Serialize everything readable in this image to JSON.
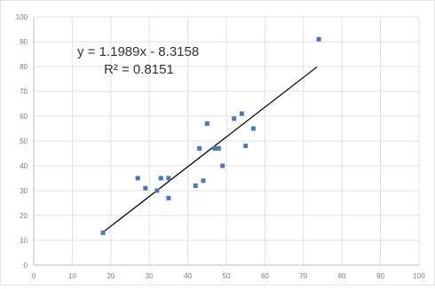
{
  "chart_data": {
    "type": "scatter",
    "title": "",
    "xlabel": "",
    "ylabel": "",
    "xlim": [
      0,
      100
    ],
    "ylim": [
      0,
      100
    ],
    "x_ticks": [
      "0",
      "10",
      "20",
      "30",
      "40",
      "50",
      "60",
      "70",
      "80",
      "90",
      "100"
    ],
    "y_ticks": [
      "0",
      "10",
      "20",
      "30",
      "40",
      "50",
      "60",
      "70",
      "80",
      "90",
      "100"
    ],
    "grid": true,
    "legend": "none",
    "point_color": "#4a78b8",
    "trendline_color": "#000000",
    "points": [
      {
        "x": 18,
        "y": 13
      },
      {
        "x": 27,
        "y": 35
      },
      {
        "x": 29,
        "y": 31
      },
      {
        "x": 32,
        "y": 30
      },
      {
        "x": 33,
        "y": 35
      },
      {
        "x": 35,
        "y": 27
      },
      {
        "x": 35,
        "y": 35
      },
      {
        "x": 42,
        "y": 32
      },
      {
        "x": 43,
        "y": 47
      },
      {
        "x": 44,
        "y": 34
      },
      {
        "x": 45,
        "y": 57
      },
      {
        "x": 47,
        "y": 47
      },
      {
        "x": 48,
        "y": 47
      },
      {
        "x": 49,
        "y": 40
      },
      {
        "x": 52,
        "y": 59
      },
      {
        "x": 54,
        "y": 61
      },
      {
        "x": 55,
        "y": 48
      },
      {
        "x": 57,
        "y": 55
      },
      {
        "x": 74,
        "y": 91
      }
    ],
    "trendline": {
      "slope": 1.1989,
      "intercept": -8.3158,
      "x_range": [
        18,
        73.5
      ],
      "equation": "y = 1.1989x - 8.3158",
      "r_squared": "R² = 0.8151"
    }
  }
}
